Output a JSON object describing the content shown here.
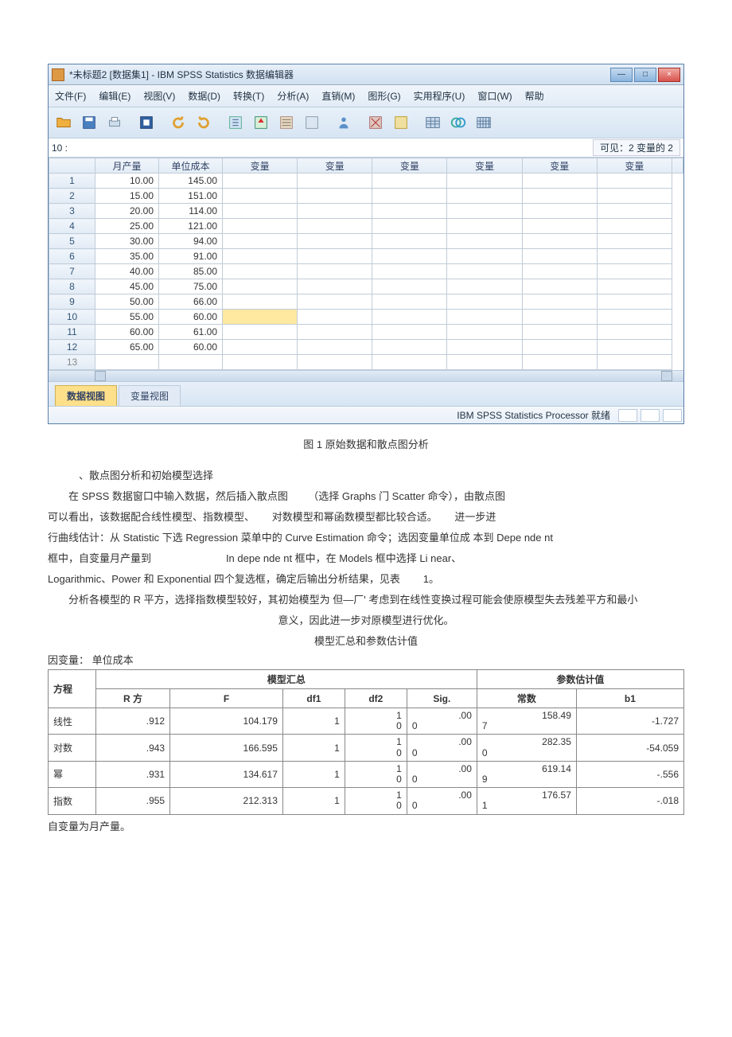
{
  "window": {
    "title": "*未标题2 [数据集1] - IBM SPSS Statistics 数据编辑器",
    "min": "—",
    "max": "□",
    "close": "×"
  },
  "menu": {
    "file": "文件(F)",
    "edit": "编辑(E)",
    "view": "视图(V)",
    "data": "数据(D)",
    "transform": "转换(T)",
    "analyze": "分析(A)",
    "direct": "直销(M)",
    "graphs": "图形(G)",
    "utilities": "实用程序(U)",
    "window": "窗口(W)",
    "help": "帮助"
  },
  "cellbar": {
    "ref": "10 :",
    "visible": "可见：2 变量的 2"
  },
  "columns": {
    "c1": "月产量",
    "c2": "单位成本",
    "v": "变量"
  },
  "rows": [
    {
      "n": "1",
      "a": "10.00",
      "b": "145.00"
    },
    {
      "n": "2",
      "a": "15.00",
      "b": "151.00"
    },
    {
      "n": "3",
      "a": "20.00",
      "b": "114.00"
    },
    {
      "n": "4",
      "a": "25.00",
      "b": "121.00"
    },
    {
      "n": "5",
      "a": "30.00",
      "b": "94.00"
    },
    {
      "n": "6",
      "a": "35.00",
      "b": "91.00"
    },
    {
      "n": "7",
      "a": "40.00",
      "b": "85.00"
    },
    {
      "n": "8",
      "a": "45.00",
      "b": "75.00"
    },
    {
      "n": "9",
      "a": "50.00",
      "b": "66.00"
    },
    {
      "n": "10",
      "a": "55.00",
      "b": "60.00"
    },
    {
      "n": "11",
      "a": "60.00",
      "b": "61.00"
    },
    {
      "n": "12",
      "a": "65.00",
      "b": "60.00"
    },
    {
      "n": "13",
      "a": "",
      "b": ""
    }
  ],
  "tabs": {
    "data": "数据视图",
    "var": "变量视图"
  },
  "status": {
    "proc": "IBM SPSS Statistics Processor 就绪"
  },
  "captions": {
    "fig1": "图 1 原始数据和散点图分析"
  },
  "text": {
    "t1": "、散点图分析和初始模型选择",
    "t2a": "在 SPSS 数据窗口中输入数据，然后插入散点图",
    "t2b": "（选择 Graphs 门 Scatter 命令），由散点图",
    "t3a": "可以看出，该数据配合线性模型、指数模型、",
    "t3b": "对数模型和幂函数模型都比较合适。",
    "t3c": "进一步进",
    "t4": "行曲线估计：从 Statistic 下选 Regression 菜单中的 Curve Estimation 命令；选因变量单位成 本到 Depe nde nt",
    "t5a": "框中，自变量月产量到",
    "t5b": "In depe nde nt 框中，在 Models 框中选择 Li near、",
    "t6a": "Logarithmic、Power 和 Exponential 四个复选框，确定后输出分析结果，见表",
    "t6b": "1。",
    "t7": "分析各模型的 R 平方，选择指数模型较好，其初始模型为 但—厂' 考虑到在线性变换过程可能会使原模型失去残差平方和最小",
    "t8": "意义，因此进一步对原模型进行优化。",
    "tbl_title": "模型汇总和参数估计值",
    "dv_label": "因变量：  单位成本",
    "iv_note": "自变量为月产量。"
  },
  "model": {
    "head": {
      "eq": "方程",
      "summary": "模型汇总",
      "params": "参数估计值",
      "r2": "R 方",
      "F": "F",
      "df1": "df1",
      "df2": "df2",
      "sig": "Sig.",
      "const": "常数",
      "b1": "b1"
    },
    "rows": [
      {
        "name": "线性",
        "r2": ".912",
        "F": "104.179",
        "df1": "1",
        "df2t": "1",
        "df2b": "0",
        "sigt": ".00",
        "sigb": "0",
        "ct": "158.49",
        "cb": "7",
        "b1": "-1.727"
      },
      {
        "name": "对数",
        "r2": ".943",
        "F": "166.595",
        "df1": "1",
        "df2t": "1",
        "df2b": "0",
        "sigt": ".00",
        "sigb": "0",
        "ct": "282.35",
        "cb": "0",
        "b1": "-54.059"
      },
      {
        "name": "幂",
        "r2": ".931",
        "F": "134.617",
        "df1": "1",
        "df2t": "1",
        "df2b": "0",
        "sigt": ".00",
        "sigb": "0",
        "ct": "619.14",
        "cb": "9",
        "b1": "-.556"
      },
      {
        "name": "指数",
        "r2": ".955",
        "F": "212.313",
        "df1": "1",
        "df2t": "1",
        "df2b": "0",
        "sigt": ".00",
        "sigb": "0",
        "ct": "176.57",
        "cb": "1",
        "b1": "-.018"
      }
    ]
  }
}
